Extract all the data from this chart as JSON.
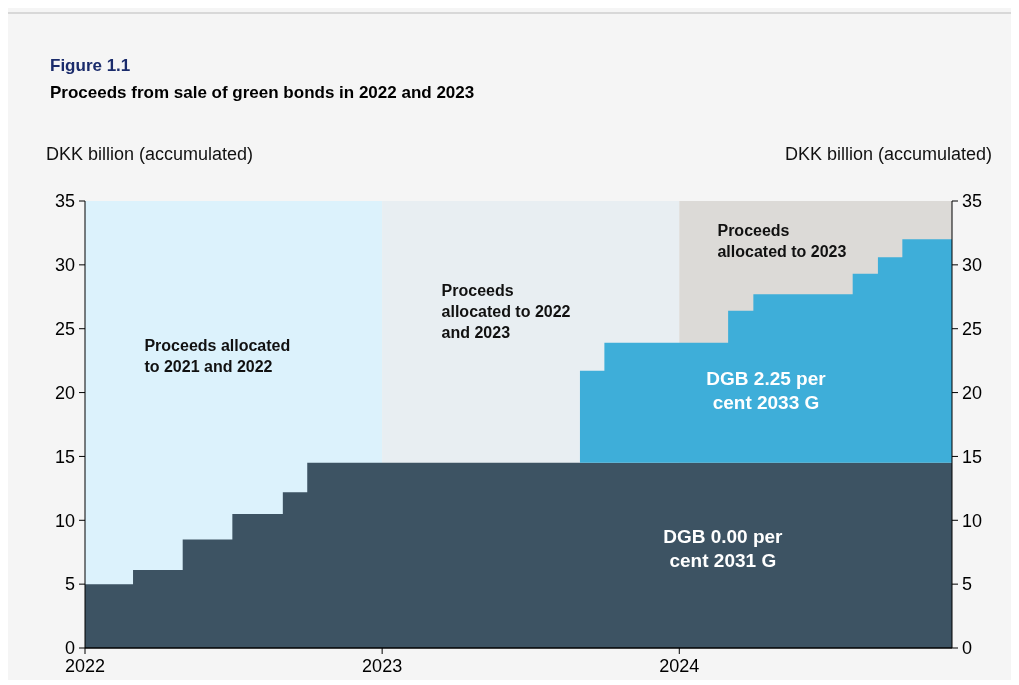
{
  "chart_data": {
    "type": "area",
    "title": "Figure 1.1",
    "subtitle": "Proceeds from sale of green bonds in 2022 and 2023",
    "ylabel": "DKK billion (accumulated)",
    "y2label": "DKK billion (accumulated)",
    "x": [
      "2022-01",
      "2022-03",
      "2022-05",
      "2022-07",
      "2022-09",
      "2022-10",
      "2023-09",
      "2023-10",
      "2024-03",
      "2024-04",
      "2024-08",
      "2024-09",
      "2024-10",
      "2024-12"
    ],
    "series": [
      {
        "name": "DGB 0.00 per cent 2031 G",
        "color": "#3d5363",
        "values": [
          5.0,
          6.1,
          8.5,
          10.5,
          12.2,
          14.5,
          14.5,
          14.5,
          14.5,
          14.5,
          14.5,
          14.5,
          14.5,
          14.5
        ]
      },
      {
        "name": "DGB 2.25 per cent 2033 G",
        "color": "#3eaed9",
        "values": [
          null,
          null,
          null,
          null,
          null,
          null,
          7.2,
          9.4,
          11.9,
          13.2,
          14.8,
          16.1,
          17.5,
          17.5
        ]
      }
    ],
    "stacked": true,
    "grid": false,
    "xlim": [
      "2022-01",
      "2024-12"
    ],
    "xticks": [
      "2022",
      "2023",
      "2024"
    ],
    "ylim": [
      0,
      35
    ],
    "yticks": [
      0,
      5,
      10,
      15,
      20,
      25,
      30,
      35
    ],
    "y2lim": [
      0,
      35
    ],
    "y2ticks": [
      0,
      5,
      10,
      15,
      20,
      25,
      30,
      35
    ],
    "bands": [
      {
        "axis": "x",
        "from": "2022-01",
        "to": "2023-01",
        "label": "Proceeds allocated\nto 2021 and 2022",
        "color": "#dcf2fc"
      },
      {
        "axis": "x",
        "from": "2023-01",
        "to": "2024-01",
        "label": "Proceeds\nallocated to 2022\nand 2023",
        "color": "#e8eef2"
      },
      {
        "axis": "x",
        "from": "2024-01",
        "to": "2024-12",
        "label": "Proceeds\nallocated to 2023",
        "color": "#dcdad7"
      }
    ]
  }
}
